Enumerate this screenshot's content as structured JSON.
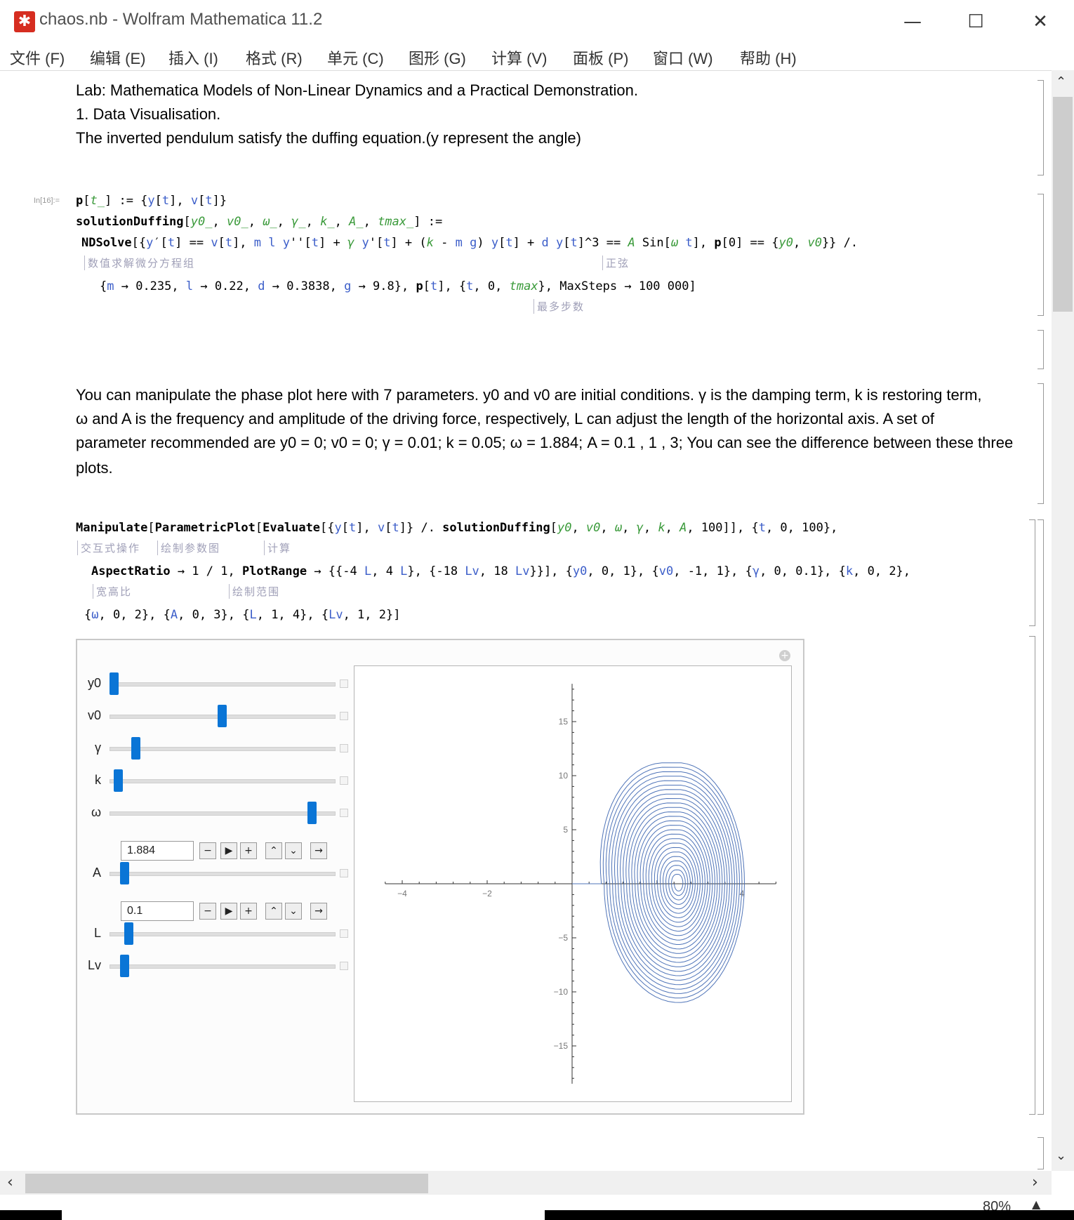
{
  "window": {
    "title": "chaos.nb - Wolfram Mathematica 11.2",
    "minimize": "—",
    "maximize": "☐",
    "close": "✕"
  },
  "menu": [
    "文件 (F)",
    "编辑 (E)",
    "插入 (I)",
    "格式 (R)",
    "单元 (C)",
    "图形 (G)",
    "计算 (V)",
    "面板 (P)",
    "窗口 (W)",
    "帮助 (H)"
  ],
  "intro": {
    "line1": "Lab: Mathematica Models of Non-Linear Dynamics and a Practical Demonstration.",
    "line2": "1. Data Visualisation.",
    "line3": "The inverted pendulum satisfy the duffing equation.(y represent the angle)"
  },
  "input1": {
    "label": "In[16]:=",
    "hint_ndsolve": "数值求解微分方程组",
    "hint_sin": "正弦",
    "hint_maxsteps": "最多步数"
  },
  "description": {
    "line1": "You can manipulate the phase plot here with 7 parameters. y0 and v0 are initial conditions. γ is the damping term, k is restoring term,",
    "line2": "ω and A is the frequency and amplitude of the driving force, respectively, L can adjust the length of the horizontal  axis. A set of",
    "line3": "parameter recommended are y0 = 0; v0 = 0; γ = 0.01; k = 0.05; ω = 1.884; A = 0.1 , 1 , 3; You can see the difference between these three",
    "line4": "plots."
  },
  "input2": {
    "hint_manipulate": "交互式操作",
    "hint_parametric": "绘制参数图",
    "hint_evaluate": "计算",
    "hint_aspect": "宽高比",
    "hint_plotrange": "绘制范围"
  },
  "controls": [
    {
      "name": "y0",
      "value": 0.0
    },
    {
      "name": "v0",
      "value": 0.5
    },
    {
      "name": "γ",
      "value": 0.1
    },
    {
      "name": "k",
      "value": 0.02
    },
    {
      "name": "ω",
      "value": 0.92,
      "field": "1.884"
    },
    {
      "name": "A",
      "value": 0.05,
      "field": "0.1"
    },
    {
      "name": "L",
      "value": 0.07
    },
    {
      "name": "Lv",
      "value": 0.05
    }
  ],
  "anim_buttons": [
    "−",
    "▶",
    "+",
    "⌃",
    "⌄",
    "→"
  ],
  "chart_data": {
    "type": "line",
    "title": "",
    "xlabel": "",
    "ylabel": "",
    "xlim": [
      -4.4,
      4.8
    ],
    "ylim": [
      -18.5,
      18.5
    ],
    "x_ticks": [
      -4,
      -2,
      4
    ],
    "y_ticks": [
      15,
      10,
      5,
      -5,
      -10,
      -15
    ],
    "x_tick_labels": [
      "−4",
      "−2",
      "4"
    ],
    "y_tick_labels": [
      "15",
      "10",
      "5",
      "−5",
      "−10",
      "−15"
    ],
    "series": [
      {
        "description": "phase trajectory (y, v)",
        "center": [
          2.5,
          0
        ],
        "outer_x": [
          -0.05,
          3.4
        ],
        "outer_y": [
          -11.3,
          11.3
        ],
        "color": "#4f74b8"
      }
    ]
  },
  "zoom": "80%"
}
